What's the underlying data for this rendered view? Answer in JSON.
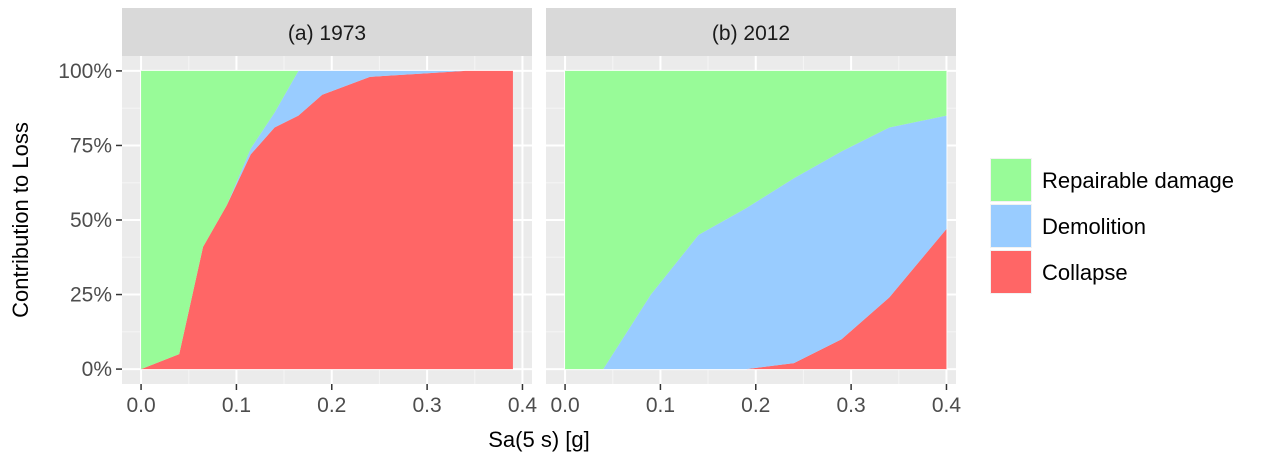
{
  "chart_data": {
    "type": "area",
    "stacked": "percent",
    "ylabel": "Contribution to Loss",
    "xlabel": "Sa(5 s) [g]",
    "y_ticks": [
      "0%",
      "25%",
      "50%",
      "75%",
      "100%"
    ],
    "y_tick_values": [
      0,
      0.25,
      0.5,
      0.75,
      1.0
    ],
    "x_ticks": [
      "0.0",
      "0.1",
      "0.2",
      "0.3",
      "0.4"
    ],
    "x_tick_values": [
      0.0,
      0.1,
      0.2,
      0.3,
      0.4
    ],
    "xlim": [
      -0.02,
      0.41
    ],
    "ylim": [
      -0.05,
      1.05
    ],
    "grid": true,
    "legend_position": "right",
    "legend": [
      {
        "name": "Repairable damage",
        "color": "#98FB98"
      },
      {
        "name": "Demolition",
        "color": "#99CCFF"
      },
      {
        "name": "Collapse",
        "color": "#FF6666"
      }
    ],
    "panels": [
      {
        "title": "(a) 1973",
        "x": [
          0.0,
          0.04,
          0.065,
          0.09,
          0.115,
          0.14,
          0.165,
          0.19,
          0.24,
          0.29,
          0.34,
          0.39
        ],
        "series": [
          {
            "name": "Collapse",
            "values": [
              0.0,
              0.05,
              0.41,
              0.55,
              0.72,
              0.81,
              0.85,
              0.92,
              0.98,
              0.99,
              1.0,
              1.0
            ]
          },
          {
            "name": "Demolition",
            "values": [
              0.0,
              0.0,
              0.0,
              0.0,
              0.02,
              0.05,
              0.15,
              0.08,
              0.02,
              0.01,
              0.0,
              0.0
            ]
          },
          {
            "name": "Repairable damage",
            "values": [
              1.0,
              0.95,
              0.59,
              0.45,
              0.26,
              0.14,
              0.0,
              0.0,
              0.0,
              0.0,
              0.0,
              0.0
            ]
          }
        ]
      },
      {
        "title": "(b) 2012",
        "x": [
          0.0,
          0.04,
          0.09,
          0.14,
          0.19,
          0.24,
          0.29,
          0.34,
          0.4
        ],
        "series": [
          {
            "name": "Collapse",
            "values": [
              0.0,
              0.0,
              0.0,
              0.0,
              0.0,
              0.02,
              0.1,
              0.24,
              0.47
            ]
          },
          {
            "name": "Demolition",
            "values": [
              0.0,
              0.0,
              0.25,
              0.45,
              0.54,
              0.62,
              0.63,
              0.57,
              0.38
            ]
          },
          {
            "name": "Repairable damage",
            "values": [
              1.0,
              1.0,
              0.75,
              0.55,
              0.46,
              0.36,
              0.27,
              0.19,
              0.15
            ]
          }
        ]
      }
    ]
  }
}
